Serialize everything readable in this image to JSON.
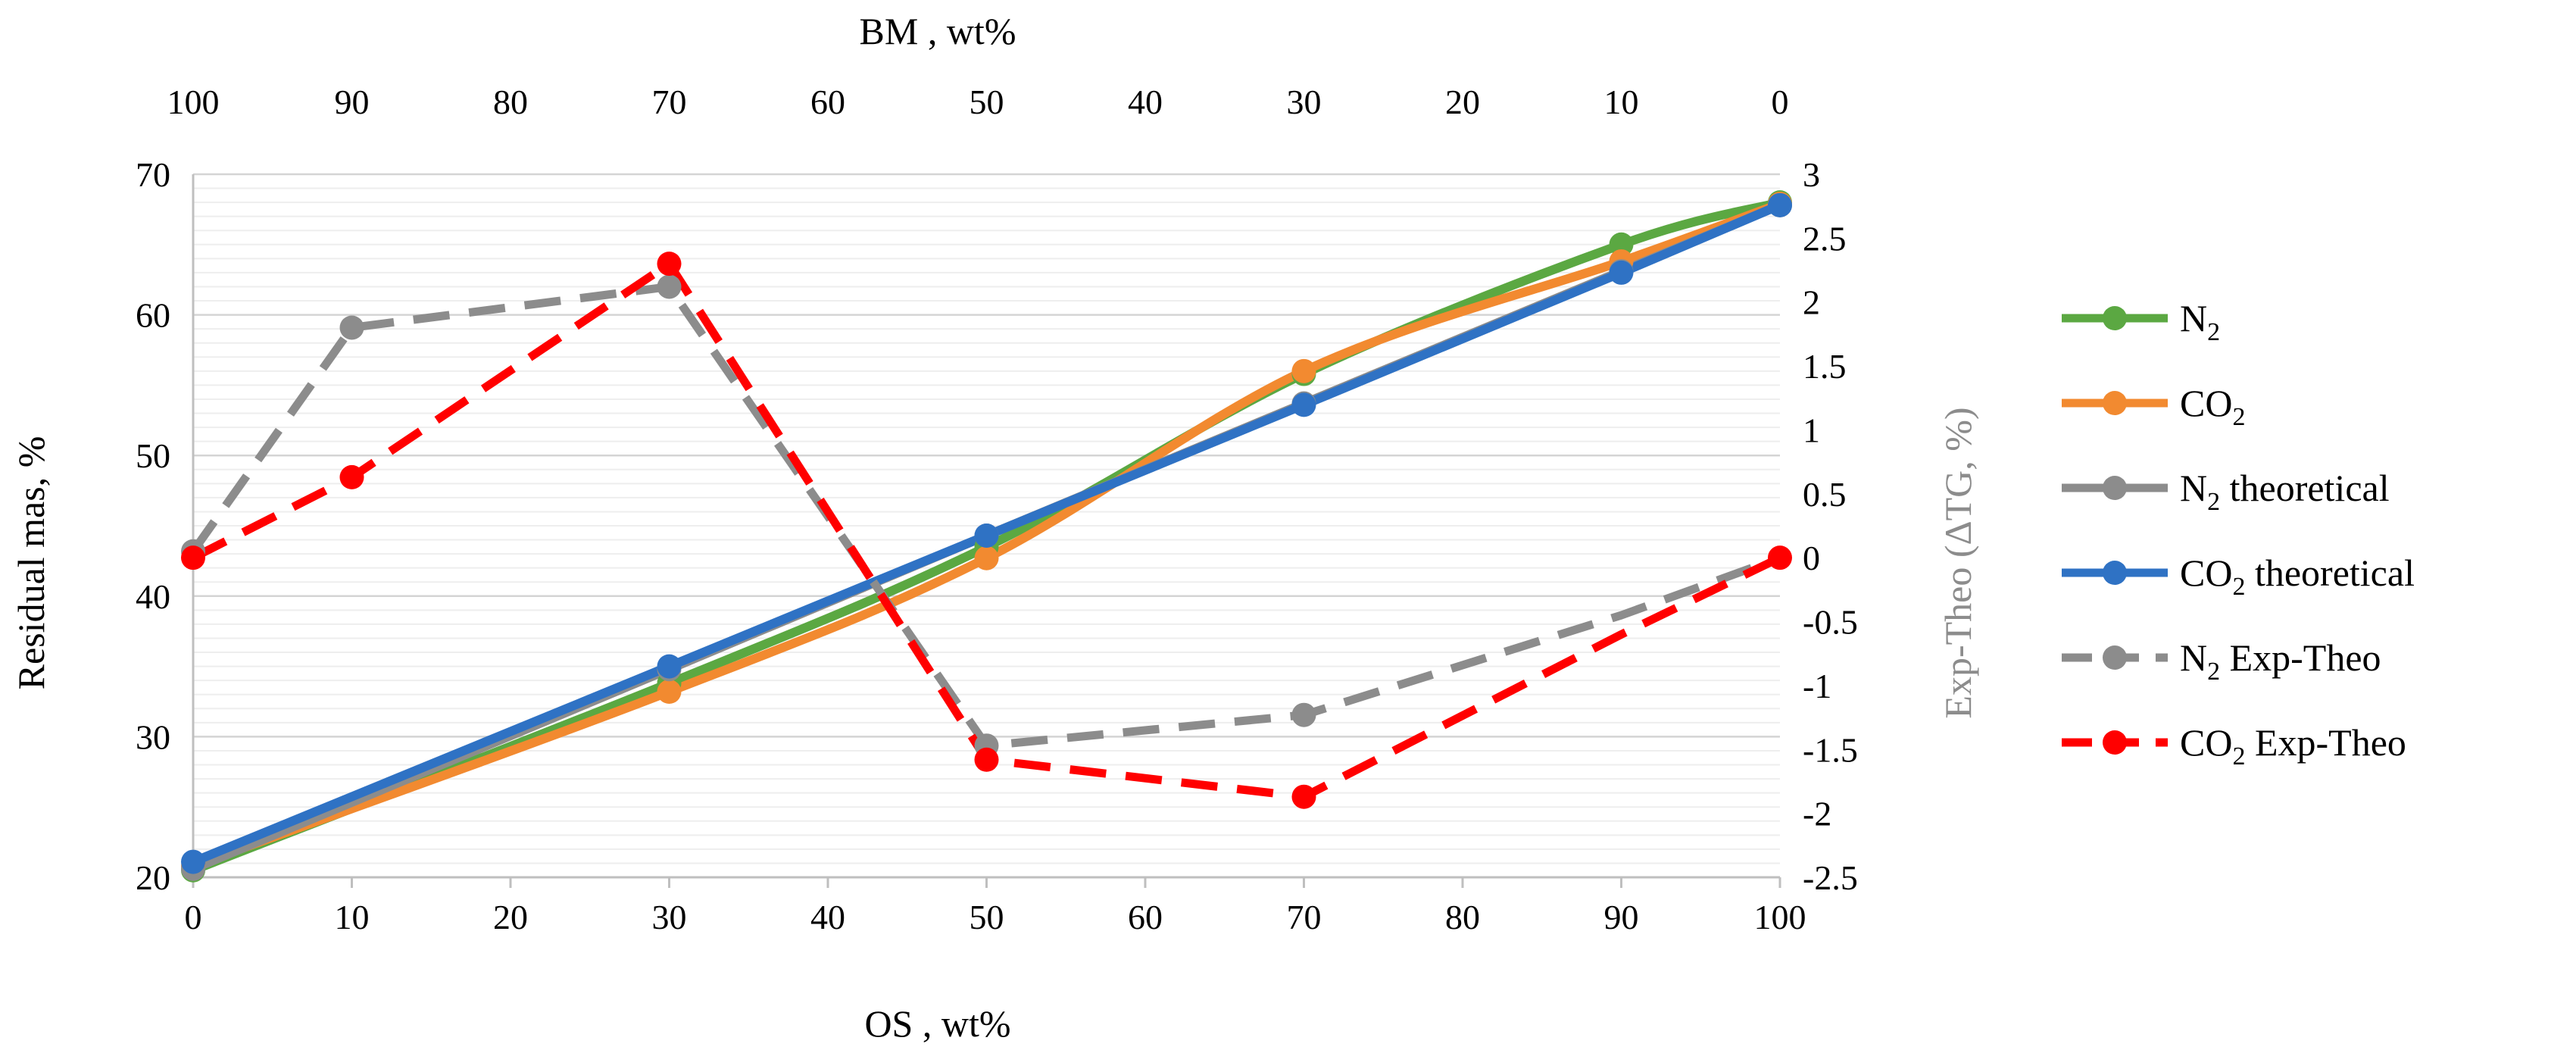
{
  "chart_data": {
    "type": "line",
    "x_bottom": {
      "label": "OS , wt%",
      "ticks": [
        "0",
        "10",
        "20",
        "30",
        "40",
        "50",
        "60",
        "70",
        "80",
        "90",
        "100"
      ],
      "range": [
        0,
        100
      ]
    },
    "x_top": {
      "label": "BM , wt%",
      "ticks": [
        "100",
        "90",
        "80",
        "70",
        "60",
        "50",
        "40",
        "30",
        "20",
        "10",
        "0"
      ],
      "range": [
        100,
        0
      ]
    },
    "y_left": {
      "label": "Residual mas, %",
      "ticks": [
        "20",
        "30",
        "40",
        "50",
        "60",
        "70"
      ],
      "range": [
        20,
        70
      ]
    },
    "y_right": {
      "label": "Exp-Theo (ΔTG, %)",
      "ticks": [
        "3",
        "2.5",
        "2",
        "1.5",
        "1",
        "0.5",
        "0",
        "-0.5",
        "-1",
        "-1.5",
        "-2",
        "-2.5"
      ],
      "range": [
        -2.5,
        3
      ]
    },
    "grid": true,
    "legend_position": "right",
    "series": [
      {
        "name": "N2",
        "label_main": "N",
        "label_sub": "2",
        "label_rest": "",
        "axis": "left",
        "color": "#5ba842",
        "dashed": false,
        "smooth": true,
        "x": [
          0,
          30,
          50,
          70,
          90,
          100
        ],
        "y": [
          20.5,
          33.8,
          43.5,
          55.8,
          65.0,
          68.0
        ]
      },
      {
        "name": "CO2",
        "label_main": "CO",
        "label_sub": "2",
        "label_rest": "",
        "axis": "left",
        "color": "#f28a30",
        "dashed": false,
        "smooth": true,
        "x": [
          0,
          30,
          50,
          70,
          90,
          100
        ],
        "y": [
          20.8,
          33.2,
          42.7,
          56.0,
          63.8,
          67.9
        ]
      },
      {
        "name": "N2 theoretical",
        "label_main": "N",
        "label_sub": "2",
        "label_rest": " theoretical",
        "axis": "left",
        "color": "#8c8c8c",
        "dashed": false,
        "smooth": false,
        "x": [
          0,
          30,
          50,
          70,
          90,
          100
        ],
        "y": [
          20.6,
          34.8,
          44.3,
          53.7,
          63.1,
          67.8
        ]
      },
      {
        "name": "CO2 theoretical",
        "label_main": "CO",
        "label_sub": "2",
        "label_rest": " theoretical",
        "axis": "left",
        "color": "#2f72c4",
        "dashed": false,
        "smooth": false,
        "x": [
          0,
          30,
          50,
          70,
          90,
          100
        ],
        "y": [
          21.1,
          35.0,
          44.3,
          53.6,
          63.0,
          67.8
        ]
      },
      {
        "name": "N2 Exp-Theo",
        "label_main": "N",
        "label_sub": "2",
        "label_rest": " Exp-Theo",
        "axis": "right",
        "color": "#8c8c8c",
        "dashed": true,
        "smooth": false,
        "markers": [
          0,
          10,
          30,
          50,
          70
        ],
        "x": [
          0,
          10,
          30,
          50,
          70,
          90,
          100
        ],
        "y": [
          0.05,
          1.8,
          2.12,
          -1.47,
          -1.23,
          -0.45,
          0.0
        ]
      },
      {
        "name": "CO2 Exp-Theo",
        "label_main": "CO",
        "label_sub": "2",
        "label_rest": " Exp-Theo",
        "axis": "right",
        "color": "#ff0000",
        "dashed": true,
        "smooth": false,
        "markers": [
          0,
          10,
          30,
          50,
          70,
          100
        ],
        "x": [
          0,
          10,
          30,
          50,
          70,
          90,
          100
        ],
        "y": [
          0.0,
          0.63,
          2.3,
          -1.58,
          -1.87,
          -0.6,
          0.0
        ]
      }
    ]
  }
}
